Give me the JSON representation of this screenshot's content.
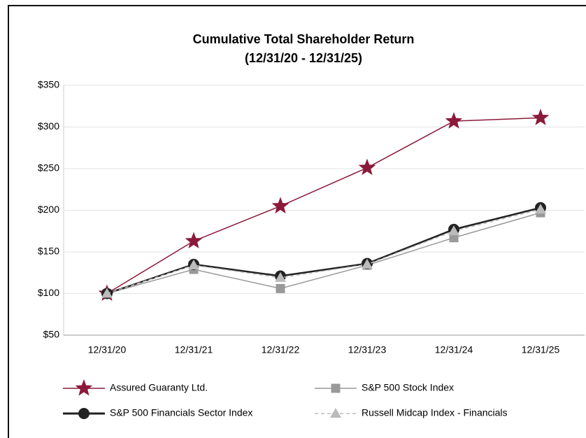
{
  "chart_data": {
    "type": "line",
    "title": "Cumulative Total Shareholder Return",
    "subtitle": "(12/31/20 - 12/31/25)",
    "categories": [
      "12/31/20",
      "12/31/21",
      "12/31/22",
      "12/31/23",
      "12/31/24",
      "12/31/25"
    ],
    "series": [
      {
        "name": "Assured Guaranty Ltd.",
        "color": "#8b1a3a",
        "marker": "star",
        "dash": false,
        "values": [
          100,
          163,
          205,
          251,
          307,
          311
        ]
      },
      {
        "name": "S&P 500 Stock Index",
        "color": "#999999",
        "marker": "square",
        "dash": false,
        "values": [
          100,
          129,
          106,
          134,
          167,
          197
        ]
      },
      {
        "name": "S&P 500 Financials Sector Index",
        "color": "#222222",
        "marker": "circle",
        "dash": false,
        "values": [
          100,
          135,
          121,
          136,
          177,
          203
        ]
      },
      {
        "name": "Russell Midcap Index - Financials",
        "color": "#bbbbbb",
        "marker": "triangle",
        "dash": true,
        "values": [
          100,
          134,
          119,
          135,
          175,
          201
        ]
      }
    ],
    "ylim": [
      50,
      350
    ],
    "yticks": [
      {
        "value": 50,
        "label": "$50"
      },
      {
        "value": 100,
        "label": "$100"
      },
      {
        "value": 150,
        "label": "$150"
      },
      {
        "value": 200,
        "label": "$200"
      },
      {
        "value": 250,
        "label": "$250"
      },
      {
        "value": 300,
        "label": "$300"
      },
      {
        "value": 350,
        "label": "$350"
      }
    ],
    "grid": true
  }
}
